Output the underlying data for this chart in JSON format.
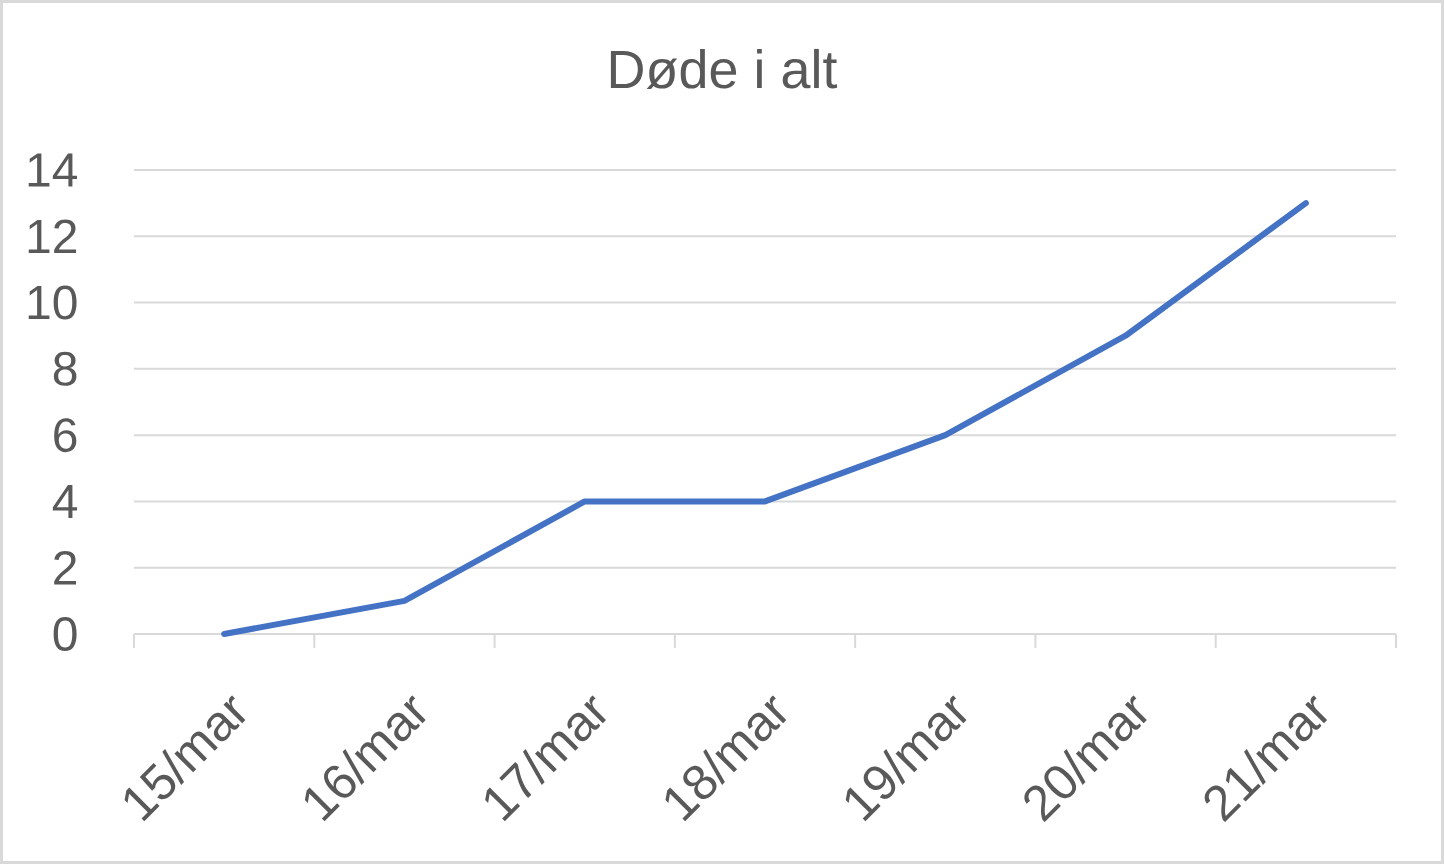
{
  "chart_data": {
    "type": "line",
    "title": "Døde i alt",
    "categories": [
      "15/mar",
      "16/mar",
      "17/mar",
      "18/mar",
      "19/mar",
      "20/mar",
      "21/mar"
    ],
    "values": [
      0,
      1,
      4,
      4,
      6,
      9,
      13
    ],
    "color": "#4472c4",
    "ylim": [
      0,
      14
    ],
    "yticks": [
      0,
      2,
      4,
      6,
      8,
      10,
      12,
      14
    ],
    "grid": "y",
    "marker": "none",
    "line_style": "solid"
  }
}
